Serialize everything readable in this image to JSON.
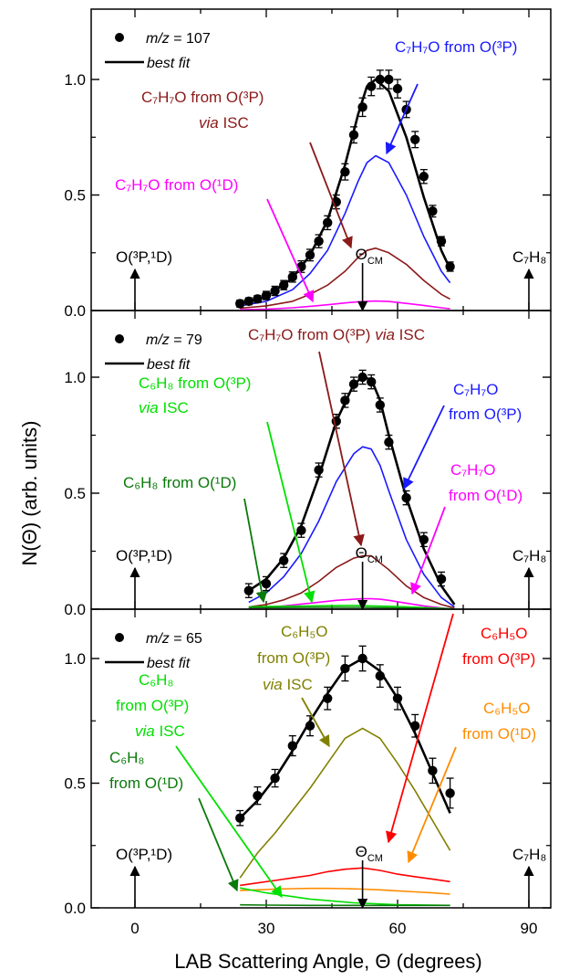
{
  "figure": {
    "ylabel": "N(Θ) (arb. units)",
    "xlabel": "LAB Scattering Angle, Θ (degrees)",
    "xlim": [
      -10,
      95
    ],
    "xticks": [
      0,
      30,
      60,
      90
    ],
    "ylim": [
      0,
      1.25
    ],
    "yticks": [
      "0.0",
      "0.5",
      "1.0"
    ],
    "theta_cm_label": "Θ",
    "theta_cm_sub": "CM",
    "theta_cm_angle": 52
  },
  "colors": {
    "data": "#000000",
    "blue": "#1a1aff",
    "darkred": "#8b1a1a",
    "magenta": "#ff00ff",
    "green": "#00e000",
    "darkgreen": "#0a7a0a",
    "olive": "#808000",
    "red": "#ff0000",
    "orange": "#ff8c00"
  },
  "chart_data": [
    {
      "type": "scatter",
      "legend": {
        "data_label": "m/z = 107",
        "fit_label": "best fit"
      },
      "xlim": [
        -10,
        95
      ],
      "ylim": [
        0,
        1.25
      ],
      "points": {
        "x": [
          24,
          26,
          28,
          30,
          32,
          34,
          36,
          38,
          40,
          42,
          44,
          46,
          48,
          50,
          52,
          54,
          56,
          58,
          60,
          62,
          64,
          66,
          68,
          70,
          72
        ],
        "y": [
          0.03,
          0.04,
          0.05,
          0.065,
          0.085,
          0.11,
          0.145,
          0.19,
          0.24,
          0.3,
          0.38,
          0.47,
          0.6,
          0.76,
          0.88,
          0.97,
          1.0,
          1.0,
          0.96,
          0.87,
          0.74,
          0.58,
          0.43,
          0.3,
          0.19
        ],
        "err": [
          0.015,
          0.015,
          0.015,
          0.018,
          0.02,
          0.02,
          0.022,
          0.025,
          0.025,
          0.028,
          0.03,
          0.03,
          0.035,
          0.035,
          0.04,
          0.04,
          0.04,
          0.04,
          0.04,
          0.035,
          0.035,
          0.03,
          0.025,
          0.02,
          0.02
        ]
      },
      "curves": [
        {
          "name": "best fit",
          "color": "data",
          "width": 2.6,
          "x": [
            24,
            30,
            36,
            40,
            44,
            48,
            51,
            53,
            55,
            58,
            62,
            66,
            70,
            72
          ],
          "y": [
            0.03,
            0.06,
            0.14,
            0.24,
            0.39,
            0.63,
            0.85,
            0.97,
            1.0,
            0.95,
            0.75,
            0.49,
            0.26,
            0.18
          ]
        },
        {
          "name": "C7H7O from O(3P)",
          "color": "blue",
          "width": 1.6,
          "x": [
            24,
            30,
            36,
            40,
            44,
            48,
            51,
            53,
            55,
            58,
            62,
            66,
            70,
            72
          ],
          "y": [
            0.02,
            0.04,
            0.09,
            0.16,
            0.26,
            0.42,
            0.56,
            0.64,
            0.67,
            0.64,
            0.5,
            0.32,
            0.17,
            0.12
          ]
        },
        {
          "name": "C7H7O from O(3P) via ISC",
          "color": "darkred",
          "width": 1.6,
          "x": [
            24,
            30,
            36,
            40,
            44,
            48,
            51,
            53,
            55,
            58,
            62,
            66,
            70,
            72
          ],
          "y": [
            0.01,
            0.02,
            0.04,
            0.07,
            0.11,
            0.17,
            0.23,
            0.26,
            0.27,
            0.25,
            0.2,
            0.13,
            0.07,
            0.05
          ]
        },
        {
          "name": "C7H7O from O(1D)",
          "color": "magenta",
          "width": 1.6,
          "x": [
            24,
            30,
            36,
            40,
            44,
            48,
            51,
            53,
            55,
            58,
            62,
            66,
            70,
            72
          ],
          "y": [
            0.003,
            0.006,
            0.012,
            0.018,
            0.025,
            0.033,
            0.038,
            0.04,
            0.041,
            0.039,
            0.031,
            0.022,
            0.012,
            0.008
          ]
        }
      ]
    },
    {
      "type": "scatter",
      "legend": {
        "data_label": "m/z = 79",
        "fit_label": "best fit"
      },
      "xlim": [
        -10,
        95
      ],
      "ylim": [
        0,
        1.25
      ],
      "points": {
        "x": [
          26,
          30,
          34,
          38,
          42,
          46,
          48,
          50,
          52,
          54,
          56,
          58,
          62,
          66,
          70
        ],
        "y": [
          0.08,
          0.11,
          0.21,
          0.34,
          0.6,
          0.81,
          0.9,
          0.97,
          1.0,
          0.98,
          0.88,
          0.72,
          0.48,
          0.3,
          0.13
        ]
      },
      "curves": [
        {
          "name": "best fit",
          "color": "data",
          "width": 2.6,
          "x": [
            26,
            30,
            34,
            38,
            42,
            46,
            50,
            52,
            54,
            56,
            58,
            62,
            66,
            70,
            73
          ],
          "y": [
            0.08,
            0.13,
            0.22,
            0.36,
            0.57,
            0.81,
            0.97,
            1.0,
            0.99,
            0.9,
            0.75,
            0.48,
            0.26,
            0.1,
            0.02
          ]
        },
        {
          "name": "C7H7O from O(3P)",
          "color": "blue",
          "width": 1.6,
          "x": [
            26,
            30,
            34,
            38,
            42,
            46,
            50,
            52,
            54,
            56,
            58,
            62,
            66,
            70,
            73
          ],
          "y": [
            0.03,
            0.07,
            0.14,
            0.24,
            0.38,
            0.55,
            0.67,
            0.7,
            0.69,
            0.62,
            0.51,
            0.3,
            0.15,
            0.05,
            0.01
          ]
        },
        {
          "name": "C7H7O from O(3P) via ISC",
          "color": "darkred",
          "width": 1.6,
          "x": [
            26,
            30,
            34,
            38,
            42,
            46,
            50,
            52,
            54,
            56,
            58,
            62,
            66,
            70,
            73
          ],
          "y": [
            0.01,
            0.02,
            0.04,
            0.07,
            0.12,
            0.18,
            0.22,
            0.23,
            0.23,
            0.2,
            0.17,
            0.1,
            0.05,
            0.02,
            0.005
          ]
        },
        {
          "name": "C7H7O from O(1D)",
          "color": "magenta",
          "width": 1.6,
          "x": [
            26,
            30,
            34,
            38,
            42,
            46,
            50,
            52,
            54,
            56,
            58,
            62,
            66,
            70,
            73
          ],
          "y": [
            0.003,
            0.008,
            0.014,
            0.022,
            0.03,
            0.038,
            0.043,
            0.045,
            0.045,
            0.043,
            0.038,
            0.026,
            0.014,
            0.005,
            0.001
          ]
        },
        {
          "name": "C6H8 from O(3P) via ISC",
          "color": "green",
          "width": 1.6,
          "x": [
            26,
            30,
            40,
            50,
            60,
            70,
            73
          ],
          "y": [
            0.01,
            0.012,
            0.014,
            0.016,
            0.012,
            0.004,
            0.001
          ]
        },
        {
          "name": "C6H8 from O(1D)",
          "color": "darkgreen",
          "width": 1.6,
          "x": [
            26,
            30,
            40,
            50,
            60,
            70,
            73
          ],
          "y": [
            0.006,
            0.007,
            0.008,
            0.008,
            0.006,
            0.002,
            0.0005
          ]
        }
      ]
    },
    {
      "type": "scatter",
      "legend": {
        "data_label": "m/z = 65",
        "fit_label": "best fit"
      },
      "xlim": [
        -10,
        95
      ],
      "ylim": [
        0,
        1.25
      ],
      "points": {
        "x": [
          24,
          28,
          32,
          36,
          40,
          44,
          48,
          52,
          56,
          60,
          64,
          68,
          72
        ],
        "y": [
          0.36,
          0.45,
          0.52,
          0.65,
          0.73,
          0.84,
          0.96,
          1.0,
          0.93,
          0.84,
          0.73,
          0.55,
          0.46
        ],
        "err": [
          0.03,
          0.035,
          0.035,
          0.04,
          0.04,
          0.045,
          0.05,
          0.05,
          0.045,
          0.045,
          0.045,
          0.05,
          0.06
        ]
      },
      "curves": [
        {
          "name": "best fit",
          "color": "data",
          "width": 2.6,
          "x": [
            24,
            28,
            32,
            36,
            40,
            44,
            48,
            52,
            56,
            60,
            64,
            68,
            72
          ],
          "y": [
            0.36,
            0.43,
            0.52,
            0.63,
            0.75,
            0.86,
            0.96,
            1.0,
            0.95,
            0.84,
            0.7,
            0.54,
            0.38
          ]
        },
        {
          "name": "C6H5O from O(3P) via ISC",
          "color": "olive",
          "width": 1.6,
          "x": [
            24,
            28,
            32,
            36,
            40,
            44,
            48,
            52,
            56,
            60,
            64,
            68,
            72
          ],
          "y": [
            0.12,
            0.22,
            0.3,
            0.39,
            0.48,
            0.58,
            0.68,
            0.72,
            0.68,
            0.58,
            0.47,
            0.35,
            0.23
          ]
        },
        {
          "name": "C6H5O from O(3P)",
          "color": "red",
          "width": 1.6,
          "x": [
            24,
            28,
            32,
            36,
            40,
            44,
            48,
            52,
            56,
            60,
            64,
            68,
            72
          ],
          "y": [
            0.09,
            0.1,
            0.11,
            0.12,
            0.13,
            0.145,
            0.155,
            0.16,
            0.15,
            0.135,
            0.125,
            0.115,
            0.105
          ]
        },
        {
          "name": "C6H5O from O(1D)",
          "color": "orange",
          "width": 1.6,
          "x": [
            24,
            28,
            32,
            36,
            40,
            44,
            48,
            52,
            56,
            60,
            64,
            68,
            72
          ],
          "y": [
            0.07,
            0.072,
            0.075,
            0.077,
            0.078,
            0.078,
            0.077,
            0.075,
            0.072,
            0.068,
            0.064,
            0.06,
            0.055
          ]
        },
        {
          "name": "C6H8 from O(3P) via ISC",
          "color": "green",
          "width": 1.6,
          "x": [
            24,
            30,
            40,
            50,
            60,
            72
          ],
          "y": [
            0.08,
            0.06,
            0.035,
            0.02,
            0.013,
            0.01
          ]
        },
        {
          "name": "C6H8 from O(1D)",
          "color": "darkgreen",
          "width": 1.6,
          "x": [
            24,
            30,
            40,
            50,
            60,
            72
          ],
          "y": [
            0.012,
            0.011,
            0.01,
            0.01,
            0.01,
            0.01
          ]
        }
      ]
    }
  ],
  "labels": {
    "o_label": "O(³P,¹D)",
    "c7h8_label": "C₇H₈",
    "p1_blue": "C₇H₇O from O(³P)",
    "p1_darkred_1": "C₇H₇O from O(³P)",
    "p1_darkred_2_em": "via",
    "p1_darkred_2_rest": " ISC",
    "p1_magenta": "C₇H₇O from O(¹D)",
    "p2_darkred_a": "C₇H₇O from O(³P) ",
    "p2_darkred_em": "via",
    "p2_darkred_b": " ISC",
    "p2_green_1": "C₆H₈ from O(³P)",
    "p2_green_2_em": "via",
    "p2_green_2_rest": " ISC",
    "p2_blue_1": "C₇H₇O",
    "p2_blue_2": "from O(³P)",
    "p2_darkgreen": "C₆H₈ from O(¹D)",
    "p2_magenta_1": "C₇H₇O",
    "p2_magenta_2": "from O(¹D)",
    "p3_olive_1": "C₆H₅O",
    "p3_olive_2": "from O(³P)",
    "p3_olive_3_em": "via",
    "p3_olive_3_rest": " ISC",
    "p3_red_1": "C₆H₅O",
    "p3_red_2": "from O(³P)",
    "p3_green_1": "C₆H₈",
    "p3_green_2": "from O(³P)",
    "p3_green_3_em": "via",
    "p3_green_3_rest": " ISC",
    "p3_orange_1": "C₆H₅O",
    "p3_orange_2": "from O(¹D)",
    "p3_darkgreen_1": "C₆H₈",
    "p3_darkgreen_2": "from O(¹D)"
  }
}
